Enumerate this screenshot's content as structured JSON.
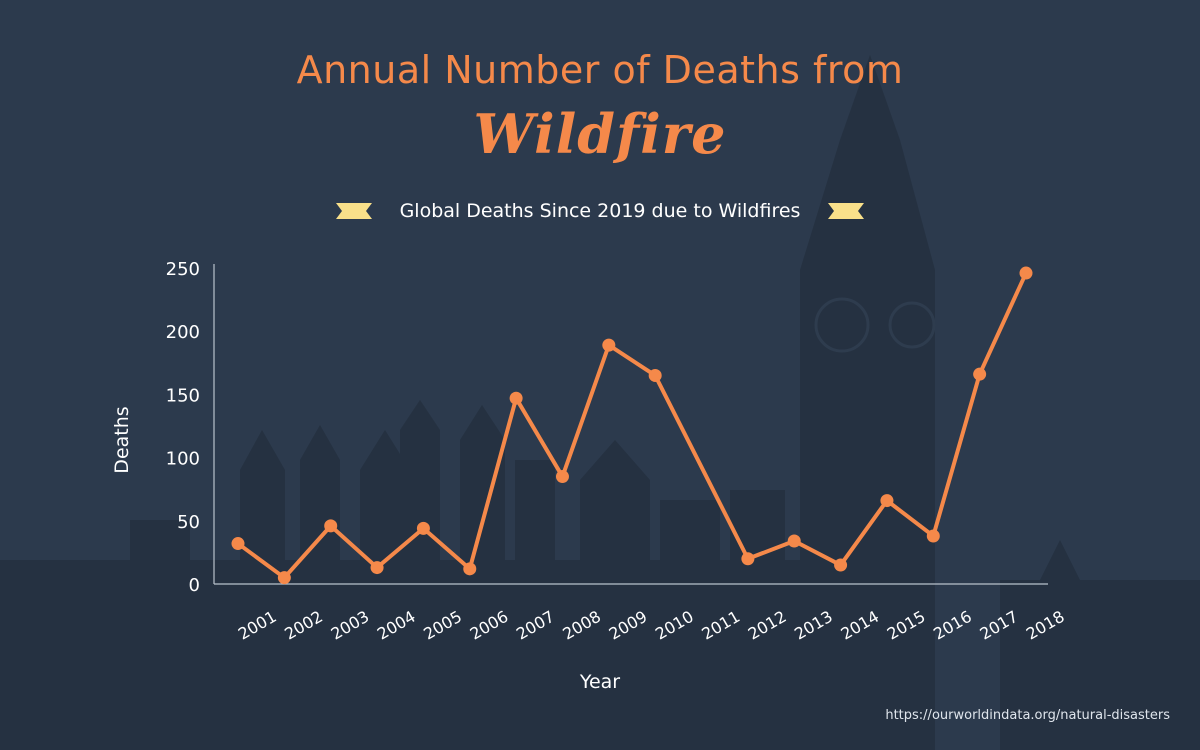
{
  "title": {
    "line1": "Annual Number of Deaths from",
    "line2": "Wildfire"
  },
  "legend": {
    "label": "Global Deaths Since 2019 due to Wildfires",
    "marker_color": "#f9e08a"
  },
  "source": "https://ourworldindata.org/natural-disasters",
  "colors": {
    "background": "#2c3a4d",
    "series": "#f5894a",
    "axis": "#b9c2cc",
    "text": "#ffffff"
  },
  "chart_data": {
    "type": "line",
    "xlabel": "Year",
    "ylabel": "Deaths",
    "ylim": [
      0,
      250
    ],
    "yticks": [
      0,
      50,
      100,
      150,
      200,
      250
    ],
    "grid": false,
    "x_tick_labels": [
      "2001",
      "2002",
      "2003",
      "2004",
      "2005",
      "2006",
      "2007",
      "2008",
      "2009",
      "2010",
      "2011",
      "2012",
      "2013",
      "2014",
      "2015",
      "2016",
      "2017",
      "2018"
    ],
    "series": [
      {
        "values": [
          32,
          5,
          46,
          13,
          44,
          12,
          147,
          85,
          189,
          165,
          null,
          20,
          34,
          15,
          66,
          38,
          166,
          246
        ]
      }
    ],
    "legend_position": "top-center"
  }
}
